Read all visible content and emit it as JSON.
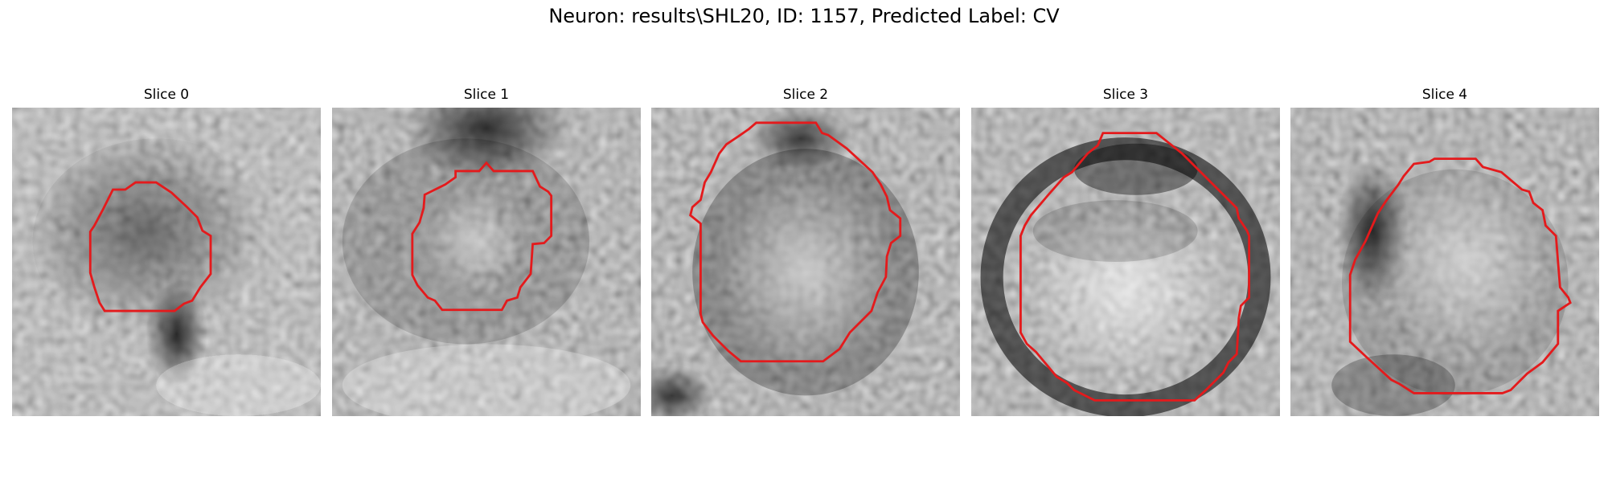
{
  "figure": {
    "title": "Neuron: results\\SHL20, ID: 1157, Predicted Label: CV",
    "contour_color": "#e41a1c"
  },
  "slices": [
    {
      "title": "Slice 0"
    },
    {
      "title": "Slice 1"
    },
    {
      "title": "Slice 2"
    },
    {
      "title": "Slice 3"
    },
    {
      "title": "Slice 4"
    }
  ]
}
